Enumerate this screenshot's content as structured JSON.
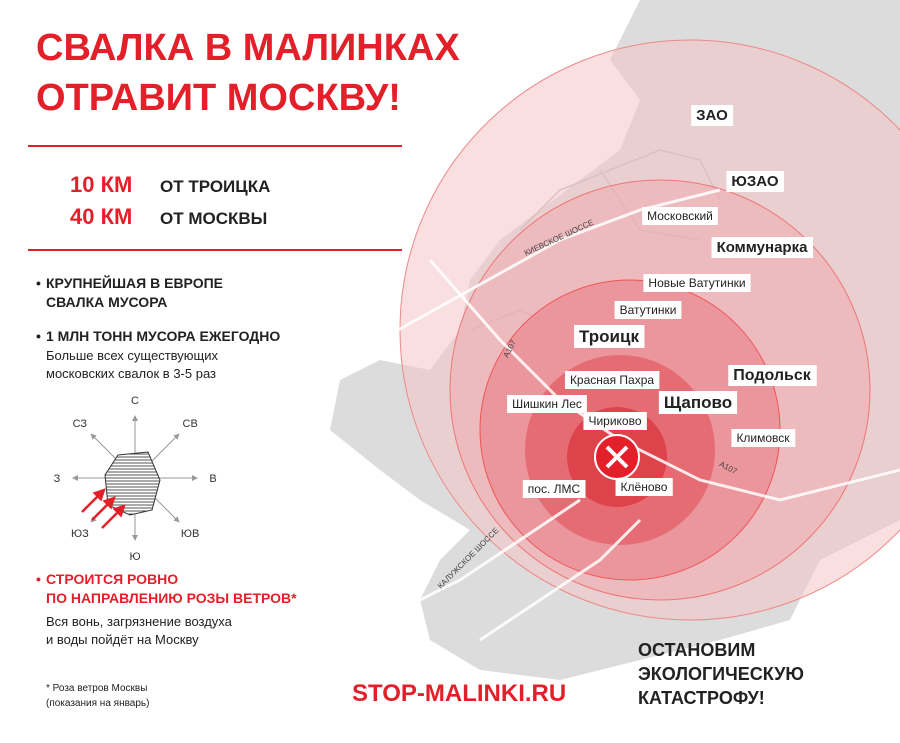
{
  "title": [
    "СВАЛКА В МАЛИНКАХ",
    "ОТРАВИТ МОСКВУ!"
  ],
  "distances": [
    {
      "value": "10 КМ",
      "label": "ОТ ТРОИЦКА"
    },
    {
      "value": "40 КМ",
      "label": "ОТ МОСКВЫ"
    }
  ],
  "bullets": [
    {
      "heading": [
        "КРУПНЕЙШАЯ В ЕВРОПЕ",
        "СВАЛКА МУСОРА"
      ]
    },
    {
      "heading": [
        "1 МЛН ТОНН МУСОРА ЕЖЕГОДНО"
      ],
      "text": [
        "Больше всех существующих",
        "московских свалок в 3-5 раз"
      ]
    }
  ],
  "wind_rose": {
    "directions": [
      "С",
      "СВ",
      "В",
      "ЮВ",
      "Ю",
      "ЮЗ",
      "З",
      "СЗ"
    ]
  },
  "warning": {
    "heading": [
      "СТРОИТСЯ РОВНО",
      "ПО НАПРАВЛЕНИЮ РОЗЫ ВЕТРОВ*"
    ],
    "text": [
      "Вся вонь, загрязнение воздуха",
      "и воды пойдёт на Москву"
    ]
  },
  "footnote": [
    "* Роза ветров Москвы",
    "(показания на январь)"
  ],
  "website": "STOP-MALINKI.RU",
  "slogan": [
    "ОСТАНОВИМ",
    "ЭКОЛОГИЧЕСКУЮ",
    "КАТАСТРОФУ!"
  ],
  "map": {
    "places": [
      "ЗАО",
      "ЮЗАО",
      "Московский",
      "Коммунарка",
      "Новые Ватутинки",
      "Ватутинки",
      "Троицк",
      "Подольск",
      "Красная Пахра",
      "Щапово",
      "Шишкин Лес",
      "Чириково",
      "Климовск",
      "пос. ЛМС",
      "Клёново"
    ],
    "roads": [
      "КИЕВСКОЕ ШОССЕ",
      "А107",
      "А107",
      "КАЛУЖСКОЕ ШОССЕ"
    ]
  }
}
